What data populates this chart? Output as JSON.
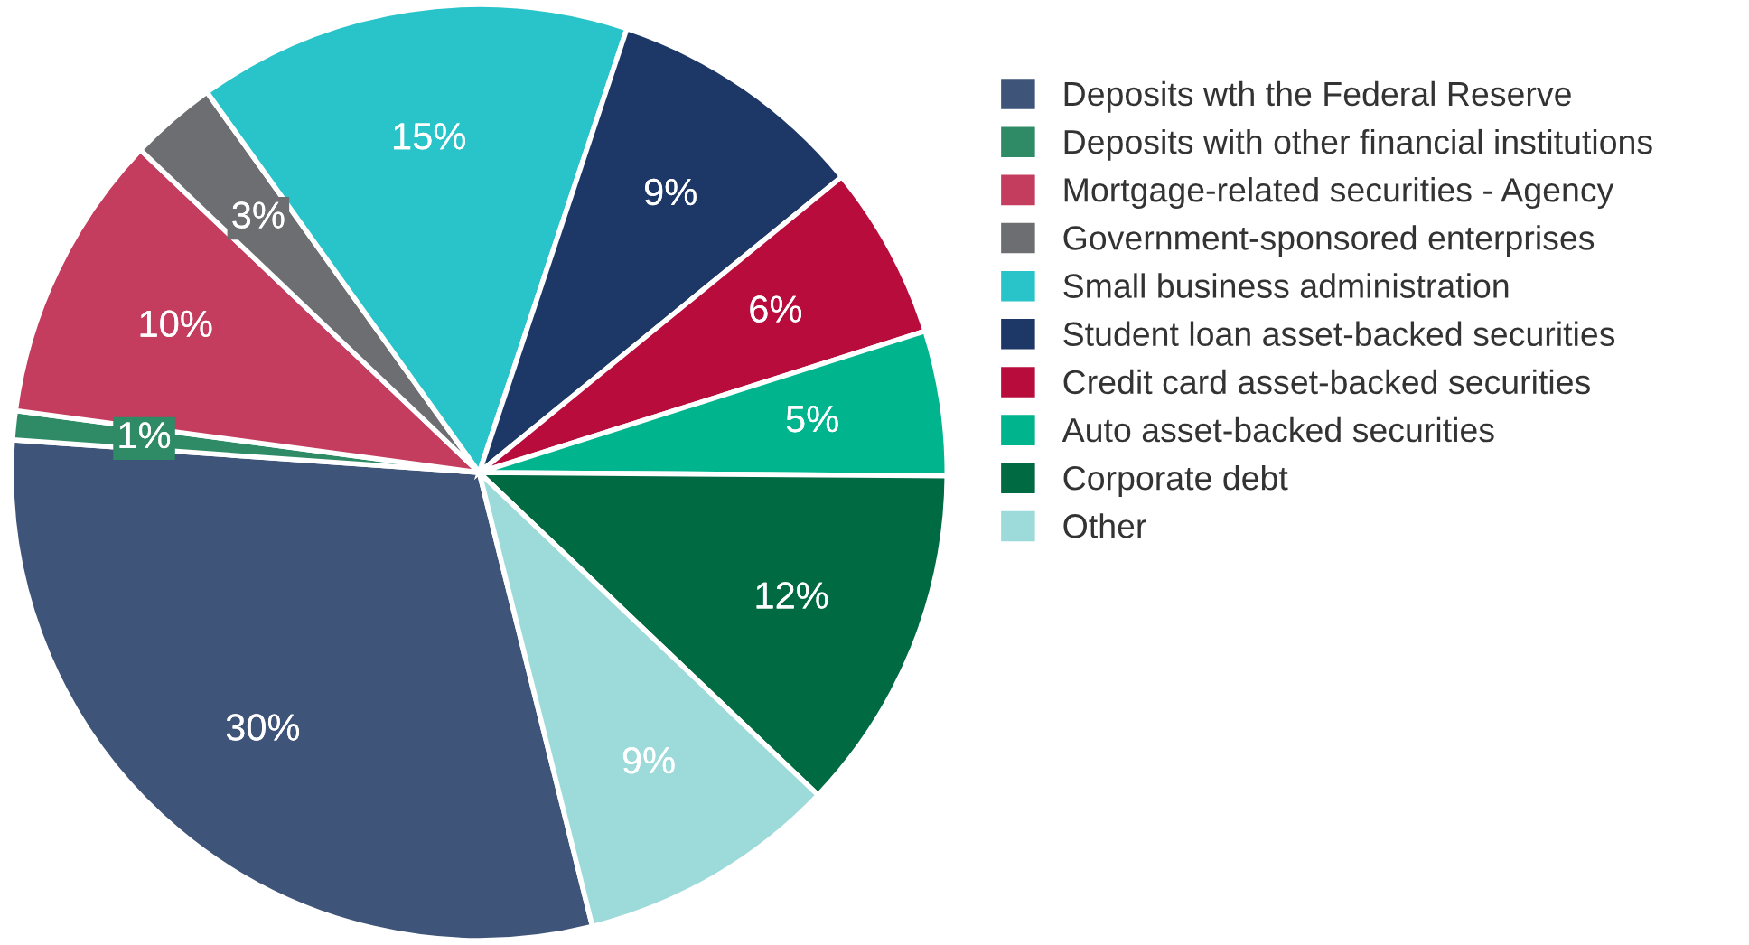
{
  "chart_data": {
    "type": "pie",
    "legend": "right",
    "value_labels": [
      "30%",
      "1%",
      "10%",
      "3%",
      "15%",
      "9%",
      "6%",
      "5%",
      "12%",
      "9%"
    ],
    "categories": [
      "Deposits wth the Federal Reserve",
      "Deposits with other financial institutions",
      "Mortgage-related securities - Agency",
      "Government-sponsored enterprises",
      "Small business administration",
      "Student loan asset-backed securities",
      "Credit card asset-backed securities",
      "Auto asset-backed securities",
      "Corporate debt",
      "Other"
    ],
    "values": [
      30,
      1,
      10,
      3,
      15,
      9,
      6,
      5,
      12,
      9
    ],
    "colors": [
      "#3f5479",
      "#2e8b66",
      "#c43c5e",
      "#6d6e71",
      "#29c4c9",
      "#1d3866",
      "#b80c3c",
      "#00b58e",
      "#006a43",
      "#9ddada"
    ]
  }
}
